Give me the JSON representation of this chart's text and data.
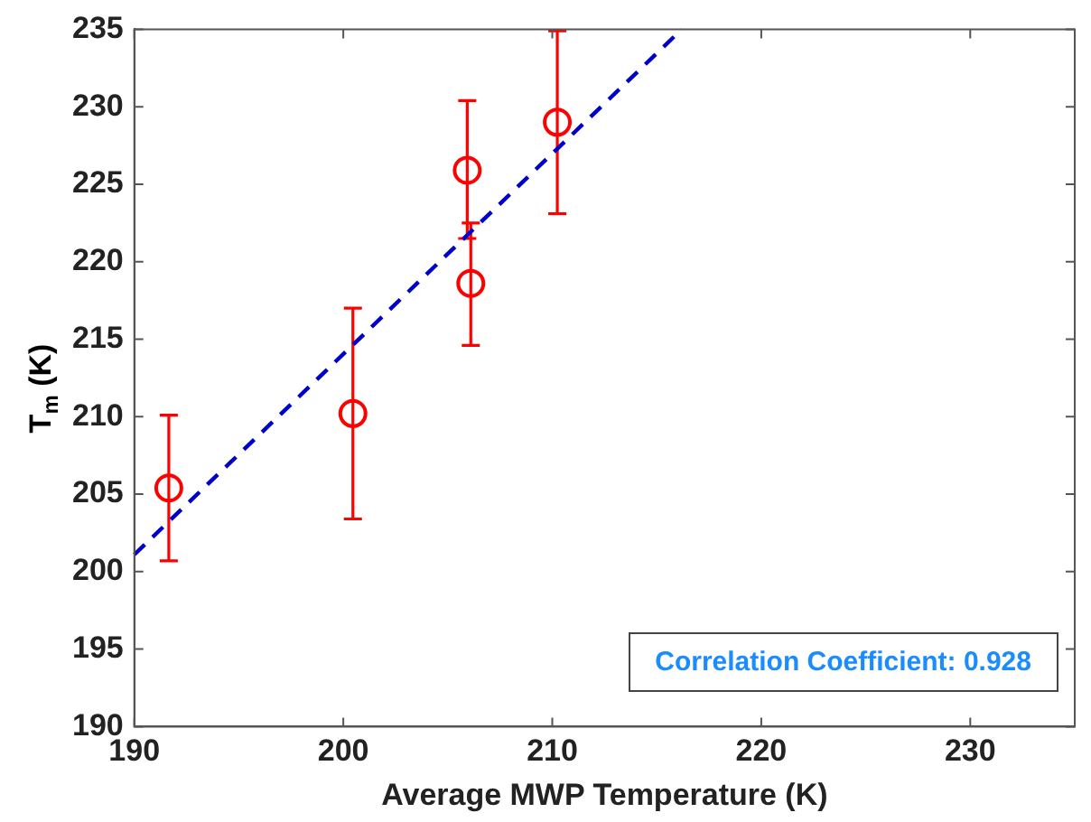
{
  "chart_data": {
    "type": "scatter",
    "xlabel": "Average MWP Temperature (K)",
    "ylabel": "T$_{m}$ (K)",
    "xlim": [
      190,
      235
    ],
    "xticks": [
      190,
      200,
      210,
      220,
      230
    ],
    "ylim": [
      190,
      235
    ],
    "yticks": [
      190,
      195,
      200,
      205,
      210,
      215,
      220,
      225,
      230,
      235
    ],
    "grid": false,
    "legend": false,
    "series": [
      {
        "type": "scatter",
        "color": "#ff0000",
        "marker": "circle",
        "x": [
          191.65,
          200.46,
          205.93,
          206.1,
          210.24
        ],
        "values": [
          205.4,
          210.2,
          225.9,
          218.6,
          229.0
        ],
        "errors": [
          [
            200.7,
            210.1
          ],
          [
            203.4,
            217.0
          ],
          [
            221.5,
            230.4
          ],
          [
            214.6,
            222.5
          ],
          [
            223.1,
            234.9
          ]
        ]
      },
      {
        "type": "line",
        "color": "#0000cc",
        "marker": "none",
        "line_style": "dashed",
        "x": [
          190,
          216.2
        ],
        "values": [
          201.1,
          235
        ]
      }
    ],
    "annotations": [
      "Correlation Coefficient: 0.928"
    ]
  }
}
